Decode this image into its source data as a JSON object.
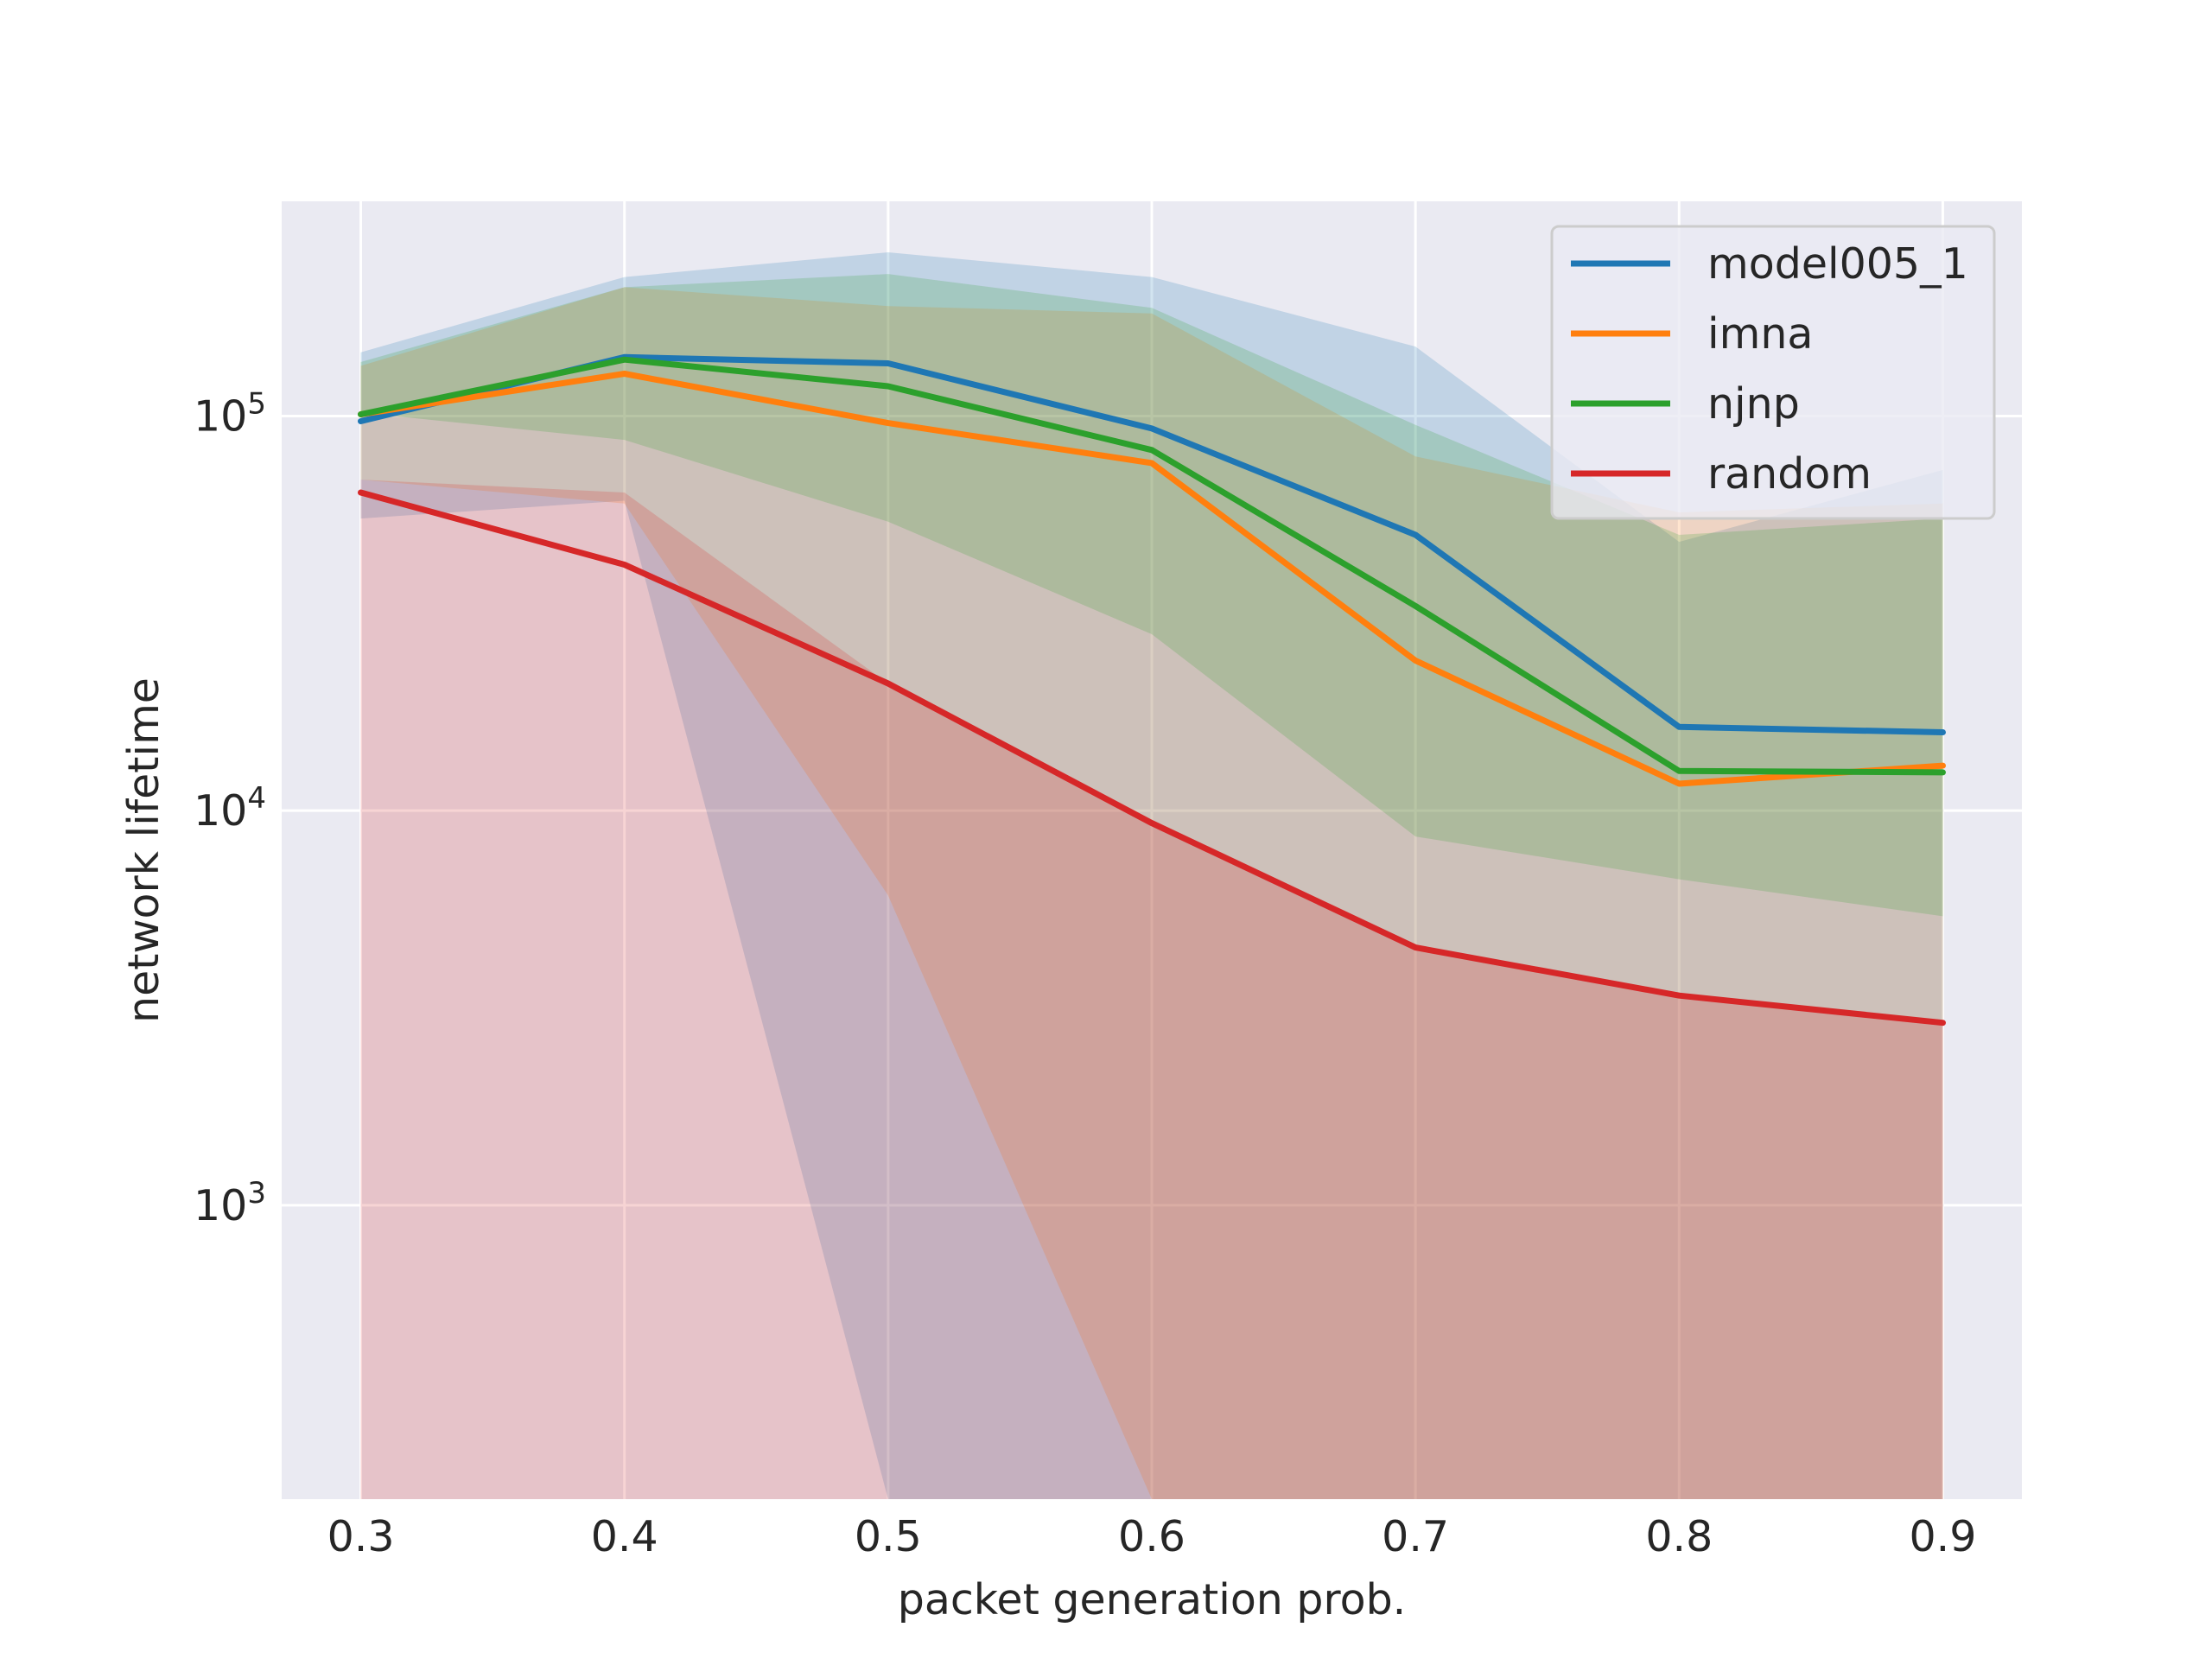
{
  "chart_data": {
    "type": "line",
    "title": "",
    "xlabel": "packet generation prob.",
    "ylabel": "network lifetime",
    "yscale": "log",
    "x": [
      0.3,
      0.4,
      0.5,
      0.6,
      0.7,
      0.8,
      0.9
    ],
    "x_tick_labels": [
      "0.3",
      "0.4",
      "0.5",
      "0.6",
      "0.7",
      "0.8",
      "0.9"
    ],
    "y_ticks": [
      {
        "base": "10",
        "exp": "3",
        "value": 1000
      },
      {
        "base": "10",
        "exp": "4",
        "value": 10000
      },
      {
        "base": "10",
        "exp": "5",
        "value": 100000
      }
    ],
    "xlim": [
      0.27,
      0.93
    ],
    "ylim": [
      180,
      350000
    ],
    "grid": true,
    "legend_position": "top-right",
    "series": [
      {
        "name": "model005_1",
        "color": "#1f77b4",
        "values": [
          97000,
          141000,
          136000,
          93000,
          50000,
          16300,
          15800
        ],
        "band_low": [
          55000,
          61000,
          180,
          180,
          180,
          180,
          180
        ],
        "band_high": [
          145000,
          225000,
          260000,
          225000,
          150000,
          48000,
          73000
        ]
      },
      {
        "name": "imna",
        "color": "#ff7f0e",
        "values": [
          101000,
          128000,
          96000,
          76000,
          24000,
          11700,
          13000
        ],
        "band_low": [
          69000,
          60000,
          6100,
          180,
          180,
          180,
          180
        ],
        "band_high": [
          134000,
          212000,
          190000,
          182000,
          79000,
          57000,
          60000
        ]
      },
      {
        "name": "njnp",
        "color": "#2ca02c",
        "values": [
          101000,
          139000,
          119000,
          82000,
          33000,
          12600,
          12500
        ],
        "band_low": [
          102000,
          87000,
          54000,
          28000,
          8600,
          6700,
          5400
        ],
        "band_high": [
          137000,
          212000,
          229000,
          188000,
          95000,
          50000,
          55000
        ]
      },
      {
        "name": "random",
        "color": "#d62728",
        "values": [
          64000,
          42000,
          21000,
          9300,
          4500,
          3400,
          2900
        ],
        "band_low": [
          180,
          180,
          180,
          180,
          180,
          180,
          180
        ],
        "band_high": [
          69000,
          64000,
          21000,
          9300,
          4500,
          3400,
          2900
        ]
      }
    ]
  }
}
